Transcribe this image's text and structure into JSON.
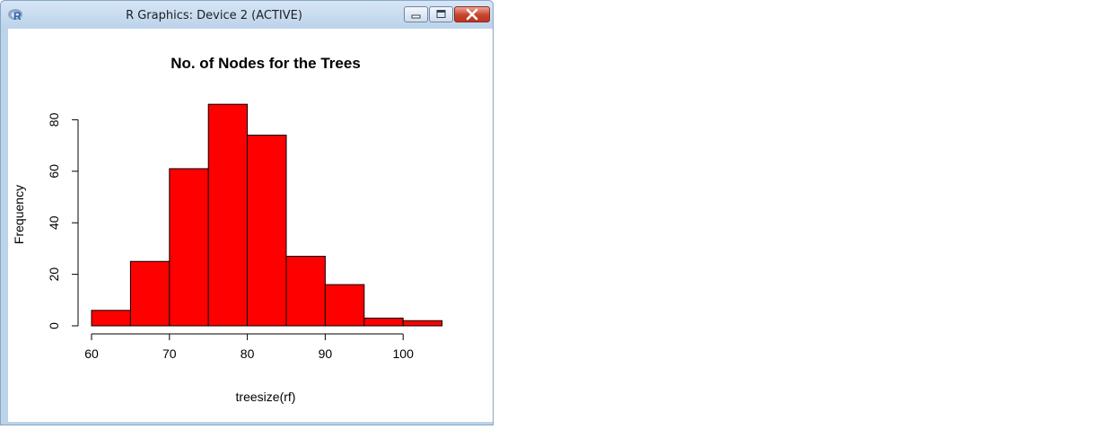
{
  "window": {
    "title": "R Graphics: Device 2 (ACTIVE)",
    "app_icon": "r-logo-icon",
    "controls": [
      "minimize-icon",
      "maximize-icon",
      "close-icon"
    ]
  },
  "colors": {
    "bar_fill": "#ff0000",
    "bar_stroke": "#000000",
    "axis": "#000000"
  },
  "chart_data": {
    "type": "bar",
    "title": "No. of Nodes for the Trees",
    "xlabel": "treesize(rf)",
    "ylabel": "Frequency",
    "bins": [
      {
        "from": 60,
        "to": 65,
        "count": 6
      },
      {
        "from": 65,
        "to": 70,
        "count": 25
      },
      {
        "from": 70,
        "to": 75,
        "count": 61
      },
      {
        "from": 75,
        "to": 80,
        "count": 86
      },
      {
        "from": 80,
        "to": 85,
        "count": 74
      },
      {
        "from": 85,
        "to": 90,
        "count": 27
      },
      {
        "from": 90,
        "to": 95,
        "count": 16
      },
      {
        "from": 95,
        "to": 100,
        "count": 3
      },
      {
        "from": 100,
        "to": 105,
        "count": 2
      }
    ],
    "xlim": [
      60,
      105
    ],
    "ylim": [
      0,
      90
    ],
    "xticks": [
      {
        "value": 60,
        "label": "60"
      },
      {
        "value": 70,
        "label": "70"
      },
      {
        "value": 80,
        "label": "80"
      },
      {
        "value": 90,
        "label": "90"
      },
      {
        "value": 100,
        "label": "100"
      }
    ],
    "yticks": [
      {
        "value": 0,
        "label": "0"
      },
      {
        "value": 20,
        "label": "20"
      },
      {
        "value": 40,
        "label": "40"
      },
      {
        "value": 60,
        "label": "60"
      },
      {
        "value": 80,
        "label": "80"
      }
    ],
    "grid": false,
    "legend": "none"
  }
}
